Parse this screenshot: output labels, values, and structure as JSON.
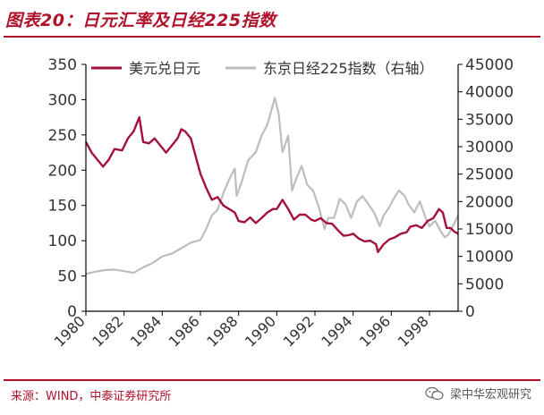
{
  "figure_title": "图表20：日元汇率及日经225指数",
  "source": "来源：WIND，中泰证券研究所",
  "watermark": "梁中华宏观研究",
  "watermark_icon": "wechat-icon",
  "colors": {
    "brand": "#b0122b",
    "usdjpy": "#a3123a",
    "nikkei": "#bdbdbd",
    "axis": "#000000",
    "text": "#333333"
  },
  "chart_data": {
    "type": "line",
    "legend_position": "top",
    "grid": false,
    "x_axis": {
      "range": [
        1980,
        1999.5
      ],
      "ticks": [
        "1980",
        "1982",
        "1984",
        "1986",
        "1988",
        "1990",
        "1992",
        "1994",
        "1996",
        "1998"
      ],
      "tick_values": [
        1980,
        1982,
        1984,
        1986,
        1988,
        1990,
        1992,
        1994,
        1996,
        1998
      ]
    },
    "y_left": {
      "range": [
        0,
        350
      ],
      "ticks": [
        "350",
        "300",
        "250",
        "200",
        "150",
        "100",
        "50",
        "0"
      ],
      "tick_values": [
        350,
        300,
        250,
        200,
        150,
        100,
        50,
        0
      ]
    },
    "y_right": {
      "range": [
        0,
        45000
      ],
      "ticks": [
        "45000",
        "40000",
        "35000",
        "30000",
        "25000",
        "20000",
        "15000",
        "10000",
        "5000",
        "0"
      ],
      "tick_values": [
        45000,
        40000,
        35000,
        30000,
        25000,
        20000,
        15000,
        10000,
        5000,
        0
      ]
    },
    "series": [
      {
        "name": "美元兑日元",
        "axis": "left",
        "points": [
          [
            1980.0,
            240
          ],
          [
            1980.3,
            225
          ],
          [
            1980.6,
            215
          ],
          [
            1980.9,
            205
          ],
          [
            1981.2,
            215
          ],
          [
            1981.5,
            230
          ],
          [
            1981.9,
            228
          ],
          [
            1982.2,
            245
          ],
          [
            1982.5,
            255
          ],
          [
            1982.8,
            275
          ],
          [
            1983.0,
            240
          ],
          [
            1983.3,
            238
          ],
          [
            1983.6,
            245
          ],
          [
            1983.9,
            235
          ],
          [
            1984.2,
            225
          ],
          [
            1984.5,
            235
          ],
          [
            1984.8,
            245
          ],
          [
            1985.0,
            258
          ],
          [
            1985.2,
            255
          ],
          [
            1985.5,
            245
          ],
          [
            1985.8,
            215
          ],
          [
            1986.0,
            195
          ],
          [
            1986.3,
            175
          ],
          [
            1986.6,
            158
          ],
          [
            1986.9,
            162
          ],
          [
            1987.2,
            150
          ],
          [
            1987.5,
            145
          ],
          [
            1987.8,
            140
          ],
          [
            1988.0,
            128
          ],
          [
            1988.3,
            126
          ],
          [
            1988.6,
            133
          ],
          [
            1988.9,
            125
          ],
          [
            1989.2,
            132
          ],
          [
            1989.5,
            140
          ],
          [
            1989.8,
            145
          ],
          [
            1990.0,
            145
          ],
          [
            1990.3,
            158
          ],
          [
            1990.6,
            145
          ],
          [
            1990.9,
            130
          ],
          [
            1991.2,
            137
          ],
          [
            1991.5,
            137
          ],
          [
            1991.8,
            130
          ],
          [
            1992.0,
            128
          ],
          [
            1992.3,
            132
          ],
          [
            1992.6,
            125
          ],
          [
            1992.9,
            124
          ],
          [
            1993.2,
            115
          ],
          [
            1993.5,
            107
          ],
          [
            1993.8,
            108
          ],
          [
            1994.0,
            110
          ],
          [
            1994.3,
            103
          ],
          [
            1994.6,
            99
          ],
          [
            1994.9,
            100
          ],
          [
            1995.2,
            95
          ],
          [
            1995.3,
            84
          ],
          [
            1995.6,
            95
          ],
          [
            1995.9,
            102
          ],
          [
            1996.2,
            105
          ],
          [
            1996.5,
            110
          ],
          [
            1996.8,
            112
          ],
          [
            1997.0,
            120
          ],
          [
            1997.3,
            122
          ],
          [
            1997.6,
            118
          ],
          [
            1997.9,
            128
          ],
          [
            1998.2,
            132
          ],
          [
            1998.5,
            145
          ],
          [
            1998.7,
            140
          ],
          [
            1998.9,
            118
          ],
          [
            1999.1,
            118
          ],
          [
            1999.3,
            113
          ],
          [
            1999.5,
            110
          ]
        ]
      },
      {
        "name": "东京日经225指数（右轴）",
        "axis": "right",
        "points": [
          [
            1980.0,
            6800
          ],
          [
            1980.5,
            7200
          ],
          [
            1981.0,
            7500
          ],
          [
            1981.5,
            7600
          ],
          [
            1982.0,
            7300
          ],
          [
            1982.5,
            7000
          ],
          [
            1983.0,
            8000
          ],
          [
            1983.5,
            8800
          ],
          [
            1984.0,
            10000
          ],
          [
            1984.5,
            10500
          ],
          [
            1985.0,
            11500
          ],
          [
            1985.5,
            12500
          ],
          [
            1986.0,
            13000
          ],
          [
            1986.3,
            15000
          ],
          [
            1986.6,
            17500
          ],
          [
            1986.9,
            18500
          ],
          [
            1987.2,
            21500
          ],
          [
            1987.5,
            24000
          ],
          [
            1987.8,
            26000
          ],
          [
            1987.9,
            21000
          ],
          [
            1988.2,
            24000
          ],
          [
            1988.5,
            27500
          ],
          [
            1988.9,
            29000
          ],
          [
            1989.2,
            32000
          ],
          [
            1989.5,
            34000
          ],
          [
            1989.9,
            38900
          ],
          [
            1990.1,
            36000
          ],
          [
            1990.3,
            29000
          ],
          [
            1990.6,
            32000
          ],
          [
            1990.8,
            22000
          ],
          [
            1991.0,
            24000
          ],
          [
            1991.3,
            26500
          ],
          [
            1991.6,
            23000
          ],
          [
            1991.9,
            22000
          ],
          [
            1992.2,
            19000
          ],
          [
            1992.5,
            15000
          ],
          [
            1992.7,
            17000
          ],
          [
            1993.0,
            17000
          ],
          [
            1993.3,
            20500
          ],
          [
            1993.6,
            19500
          ],
          [
            1993.9,
            17000
          ],
          [
            1994.2,
            20000
          ],
          [
            1994.5,
            21000
          ],
          [
            1994.8,
            19500
          ],
          [
            1995.1,
            18000
          ],
          [
            1995.4,
            15500
          ],
          [
            1995.6,
            17500
          ],
          [
            1995.9,
            19000
          ],
          [
            1996.2,
            21000
          ],
          [
            1996.4,
            22000
          ],
          [
            1996.7,
            21000
          ],
          [
            1996.9,
            19500
          ],
          [
            1997.2,
            18000
          ],
          [
            1997.5,
            20000
          ],
          [
            1997.8,
            17000
          ],
          [
            1998.0,
            15500
          ],
          [
            1998.3,
            16500
          ],
          [
            1998.6,
            14500
          ],
          [
            1998.8,
            13500
          ],
          [
            1999.0,
            14000
          ],
          [
            1999.3,
            16000
          ],
          [
            1999.5,
            17500
          ]
        ]
      }
    ]
  }
}
